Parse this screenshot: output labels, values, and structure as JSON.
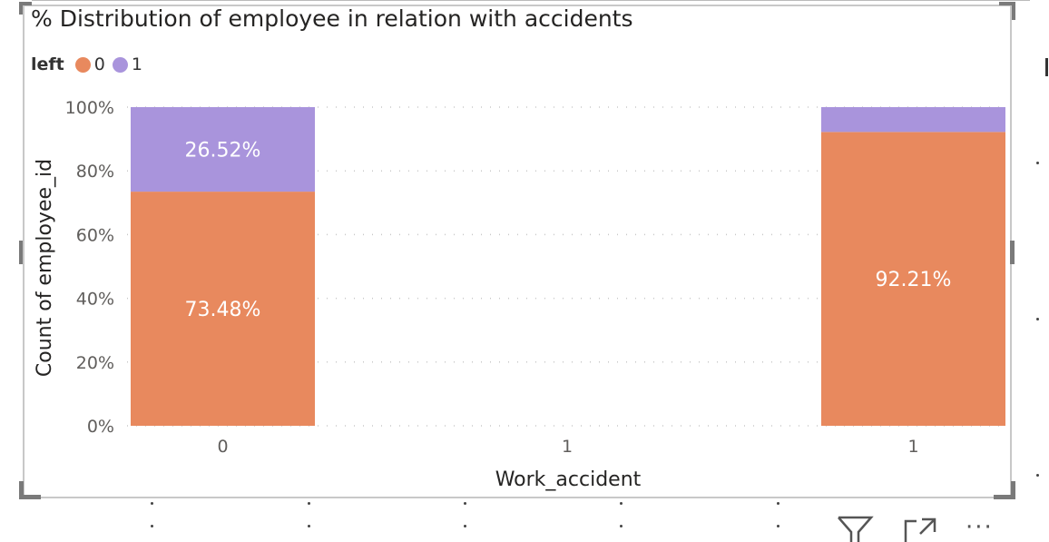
{
  "visual": {
    "title": "% Distribution of employee in relation with accidents"
  },
  "legend": {
    "title": "left",
    "items": [
      {
        "label": "0",
        "color": "#E8895E"
      },
      {
        "label": "1",
        "color": "#A994DC"
      }
    ]
  },
  "chart_data": {
    "type": "bar",
    "stacked": true,
    "percent": true,
    "title": "% Distribution of employee in relation with accidents",
    "xlabel": "Work_accident",
    "ylabel": "Count of employee_id",
    "categories": [
      "0",
      "1",
      "1"
    ],
    "ylim": [
      0,
      100
    ],
    "yticks": [
      "0%",
      "20%",
      "40%",
      "60%",
      "80%",
      "100%"
    ],
    "series": [
      {
        "name": "0",
        "color": "#E8895E",
        "values": [
          73.48,
          null,
          92.21
        ],
        "labels": [
          "73.48%",
          "",
          "92.21%"
        ]
      },
      {
        "name": "1",
        "color": "#A994DC",
        "values": [
          26.52,
          null,
          7.79
        ],
        "labels": [
          "26.52%",
          "",
          ""
        ]
      }
    ],
    "grid": true,
    "legend_position": "top-left"
  },
  "footer": {
    "icons": [
      "filter-icon",
      "focus-mode-icon",
      "more-options-icon"
    ],
    "more_label": "···"
  }
}
